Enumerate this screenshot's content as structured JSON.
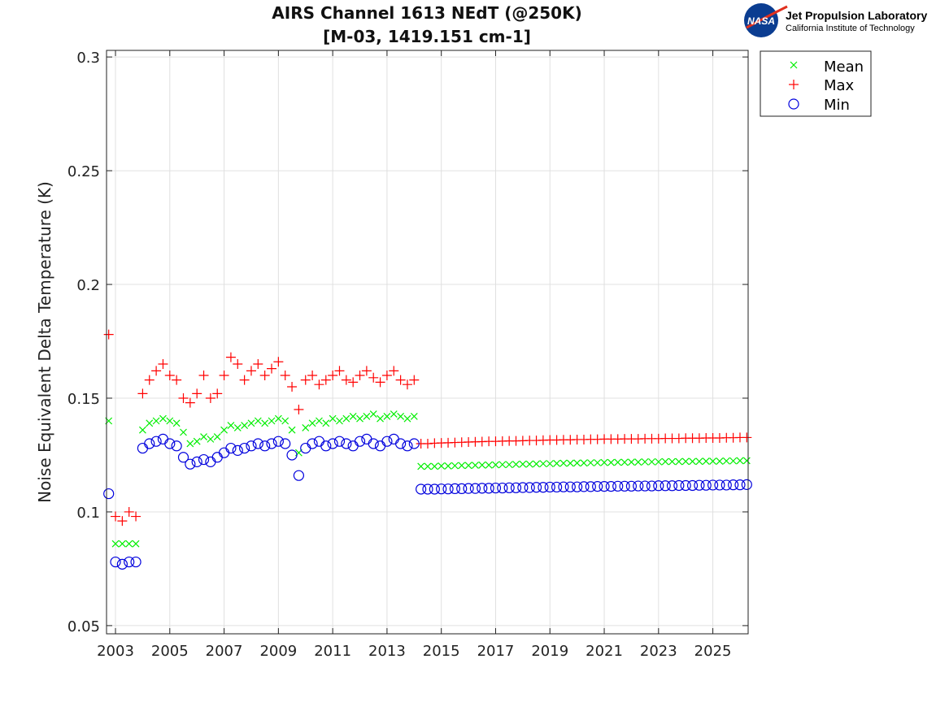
{
  "chart_data": {
    "type": "scatter",
    "title": [
      "AIRS Channel 1613 NEdT (@250K)",
      "[M-03, 1419.151 cm-1]"
    ],
    "xlabel": "",
    "ylabel": "Noise Equivalent Delta Temperature (K)",
    "xlim": [
      2002.67,
      2026.3
    ],
    "ylim": [
      0.0464,
      0.3029
    ],
    "xticks": [
      2003,
      2005,
      2007,
      2009,
      2011,
      2013,
      2015,
      2017,
      2019,
      2021,
      2023,
      2025
    ],
    "xtick_labels": [
      "2003",
      "2005",
      "2007",
      "2009",
      "2011",
      "2013",
      "2015",
      "2017",
      "2019",
      "2021",
      "2023",
      "2025"
    ],
    "yticks": [
      0.05,
      0.1,
      0.15,
      0.2,
      0.25,
      0.3
    ],
    "ytick_labels": [
      "0.05",
      "0.1",
      "0.15",
      "0.2",
      "0.25",
      "0.3"
    ],
    "grid": true,
    "legend_position": "outside-top-right",
    "x": [
      2002.75,
      2003.0,
      2003.25,
      2003.5,
      2003.75,
      2004.0,
      2004.25,
      2004.5,
      2004.75,
      2005.0,
      2005.25,
      2005.5,
      2005.75,
      2006.0,
      2006.25,
      2006.5,
      2006.75,
      2007.0,
      2007.25,
      2007.5,
      2007.75,
      2008.0,
      2008.25,
      2008.5,
      2008.75,
      2009.0,
      2009.25,
      2009.5,
      2009.75,
      2010.0,
      2010.25,
      2010.5,
      2010.75,
      2011.0,
      2011.25,
      2011.5,
      2011.75,
      2012.0,
      2012.25,
      2012.5,
      2012.75,
      2013.0,
      2013.25,
      2013.5,
      2013.75,
      2014.0,
      2014.25,
      2014.5,
      2014.75,
      2015.0,
      2015.25,
      2015.5,
      2015.75,
      2016.0,
      2016.25,
      2016.5,
      2016.75,
      2017.0,
      2017.25,
      2017.5,
      2017.75,
      2018.0,
      2018.25,
      2018.5,
      2018.75,
      2019.0,
      2019.25,
      2019.5,
      2019.75,
      2020.0,
      2020.25,
      2020.5,
      2020.75,
      2021.0,
      2021.25,
      2021.5,
      2021.75,
      2022.0,
      2022.25,
      2022.5,
      2022.75,
      2023.0,
      2023.25,
      2023.5,
      2023.75,
      2024.0,
      2024.25,
      2024.5,
      2024.75,
      2025.0,
      2025.25,
      2025.5,
      2025.75,
      2026.0,
      2026.25
    ],
    "series": [
      {
        "name": "Mean",
        "marker": "x",
        "color": "#00ee00",
        "values": [
          0.14,
          0.086,
          0.086,
          0.086,
          0.086,
          0.136,
          0.139,
          0.14,
          0.141,
          0.14,
          0.139,
          0.135,
          0.13,
          0.131,
          0.133,
          0.132,
          0.133,
          0.136,
          0.138,
          0.137,
          0.138,
          0.139,
          0.14,
          0.139,
          0.14,
          0.141,
          0.14,
          0.136,
          0.126,
          0.137,
          0.139,
          0.14,
          0.139,
          0.141,
          0.14,
          0.141,
          0.142,
          0.141,
          0.142,
          0.143,
          0.141,
          0.142,
          0.143,
          0.142,
          0.141,
          0.142,
          0.12,
          0.12,
          0.12,
          0.1202,
          0.1202,
          0.1203,
          0.1204,
          0.1204,
          0.1205,
          0.1206,
          0.1206,
          0.1207,
          0.1208,
          0.1208,
          0.1209,
          0.121,
          0.121,
          0.1211,
          0.1212,
          0.1212,
          0.1213,
          0.1214,
          0.1214,
          0.1215,
          0.1215,
          0.1216,
          0.1216,
          0.1217,
          0.1217,
          0.1218,
          0.1218,
          0.1219,
          0.1219,
          0.122,
          0.122,
          0.122,
          0.1221,
          0.1221,
          0.1221,
          0.1222,
          0.1222,
          0.1222,
          0.1223,
          0.1223,
          0.1223,
          0.1224,
          0.1224,
          0.1225,
          0.1225
        ]
      },
      {
        "name": "Max",
        "marker": "+",
        "color": "#ff0000",
        "values": [
          0.178,
          0.098,
          0.096,
          0.1,
          0.098,
          0.152,
          0.158,
          0.162,
          0.165,
          0.16,
          0.158,
          0.15,
          0.148,
          0.152,
          0.16,
          0.15,
          0.152,
          0.16,
          0.168,
          0.165,
          0.158,
          0.162,
          0.165,
          0.16,
          0.163,
          0.166,
          0.16,
          0.155,
          0.145,
          0.158,
          0.16,
          0.156,
          0.158,
          0.16,
          0.162,
          0.158,
          0.157,
          0.16,
          0.162,
          0.159,
          0.157,
          0.16,
          0.162,
          0.158,
          0.156,
          0.158,
          0.13,
          0.13,
          0.1302,
          0.1303,
          0.1304,
          0.1305,
          0.1306,
          0.1307,
          0.1308,
          0.1309,
          0.131,
          0.131,
          0.1311,
          0.1312,
          0.1312,
          0.1313,
          0.1314,
          0.1314,
          0.1315,
          0.1316,
          0.1316,
          0.1317,
          0.1317,
          0.1318,
          0.1318,
          0.1319,
          0.1319,
          0.132,
          0.132,
          0.132,
          0.1321,
          0.1321,
          0.1321,
          0.1322,
          0.1322,
          0.1322,
          0.1323,
          0.1323,
          0.1323,
          0.1324,
          0.1324,
          0.1324,
          0.1325,
          0.1325,
          0.1325,
          0.1326,
          0.1326,
          0.1327,
          0.1327
        ]
      },
      {
        "name": "Min",
        "marker": "o",
        "color": "#0000dd",
        "values": [
          0.108,
          0.078,
          0.077,
          0.078,
          0.078,
          0.128,
          0.13,
          0.131,
          0.132,
          0.13,
          0.129,
          0.124,
          0.121,
          0.122,
          0.123,
          0.122,
          0.124,
          0.126,
          0.128,
          0.127,
          0.128,
          0.129,
          0.13,
          0.129,
          0.13,
          0.131,
          0.13,
          0.125,
          0.116,
          0.128,
          0.13,
          0.131,
          0.129,
          0.13,
          0.131,
          0.13,
          0.129,
          0.131,
          0.132,
          0.13,
          0.129,
          0.131,
          0.132,
          0.13,
          0.129,
          0.13,
          0.11,
          0.11,
          0.11,
          0.1101,
          0.1101,
          0.1102,
          0.1102,
          0.1103,
          0.1103,
          0.1104,
          0.1104,
          0.1105,
          0.1105,
          0.1106,
          0.1106,
          0.1107,
          0.1107,
          0.1108,
          0.1108,
          0.1109,
          0.1109,
          0.111,
          0.111,
          0.111,
          0.1111,
          0.1111,
          0.1112,
          0.1112,
          0.1112,
          0.1113,
          0.1113,
          0.1113,
          0.1114,
          0.1114,
          0.1114,
          0.1115,
          0.1115,
          0.1115,
          0.1116,
          0.1116,
          0.1116,
          0.1117,
          0.1117,
          0.1118,
          0.1118,
          0.1118,
          0.1119,
          0.1119,
          0.112
        ]
      }
    ]
  },
  "logo": {
    "text": "NASA",
    "org_line1": "Jet Propulsion Laboratory",
    "org_line2": "California Institute of Technology"
  }
}
